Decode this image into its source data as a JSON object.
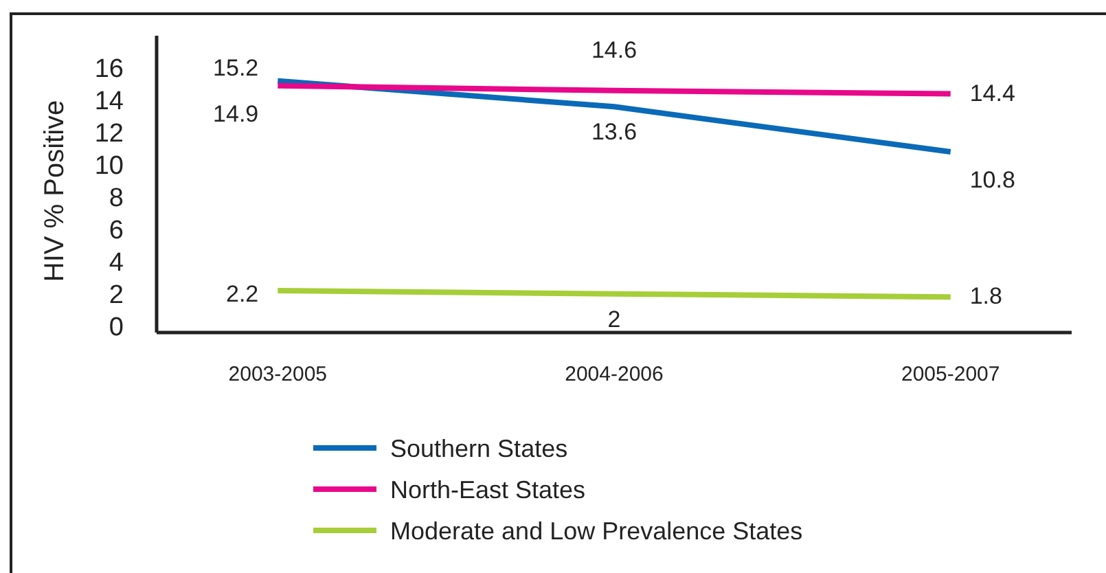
{
  "chart_data": {
    "type": "line",
    "ylabel": "HIV % Positive",
    "categories": [
      "2003-2005",
      "2004-2006",
      "2005-2007"
    ],
    "series": [
      {
        "name": "Southern States",
        "color": "#0a6ab8",
        "values": [
          15.2,
          13.6,
          10.8
        ]
      },
      {
        "name": "North-East States",
        "color": "#e8088a",
        "values": [
          14.9,
          14.6,
          14.4
        ]
      },
      {
        "name": "Moderate and Low Prevalence States",
        "color": "#a6ce39",
        "values": [
          2.2,
          2,
          1.8
        ]
      }
    ],
    "ylim": [
      -0.4,
      18
    ],
    "yticks": [
      0,
      2,
      4,
      6,
      8,
      10,
      12,
      14,
      16
    ],
    "data_labels": true,
    "legend": "bottom left",
    "marker": "none",
    "line_style": "solid",
    "grid": false
  }
}
